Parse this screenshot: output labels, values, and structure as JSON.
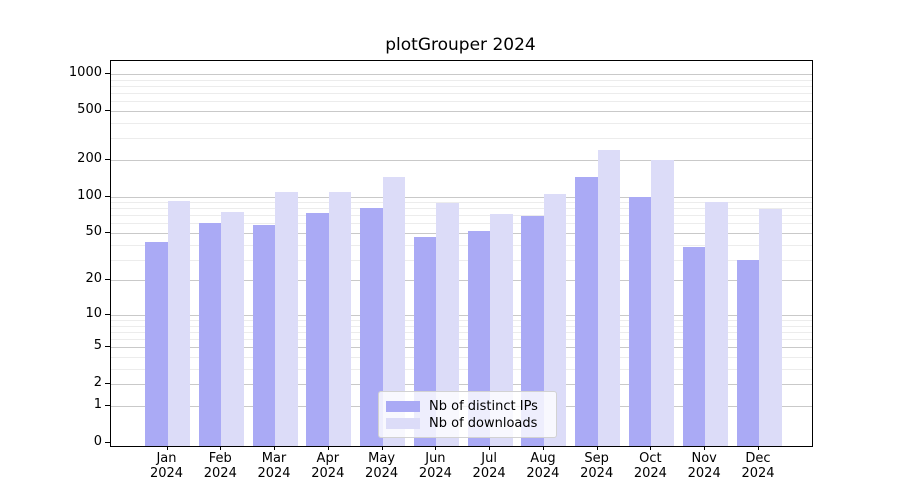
{
  "title": "plotGrouper 2024",
  "chart_data": {
    "type": "bar",
    "title": "plotGrouper 2024",
    "categories": [
      "Jan 2024",
      "Feb 2024",
      "Mar 2024",
      "Apr 2024",
      "May 2024",
      "Jun 2024",
      "Jul 2024",
      "Aug 2024",
      "Sep 2024",
      "Oct 2024",
      "Nov 2024",
      "Dec 2024"
    ],
    "months": [
      "Jan",
      "Feb",
      "Mar",
      "Apr",
      "May",
      "Jun",
      "Jul",
      "Aug",
      "Sep",
      "Oct",
      "Nov",
      "Dec"
    ],
    "year_label": "2024",
    "series": [
      {
        "name": "Nb of distinct IPs",
        "color": "#aaaaf5",
        "values": [
          42,
          61,
          58,
          73,
          80,
          46,
          52,
          69,
          145,
          100,
          38,
          30
        ]
      },
      {
        "name": "Nb of downloads",
        "color": "#dcdcf8",
        "values": [
          92,
          74,
          108,
          108,
          145,
          88,
          72,
          105,
          240,
          200,
          90,
          79
        ]
      }
    ],
    "yscale": "log1p",
    "ylim": [
      0,
      1270
    ],
    "y_ticks": [
      0,
      1,
      2,
      5,
      10,
      20,
      50,
      100,
      200,
      500,
      1000
    ],
    "y_tick_labels": [
      "0",
      "1",
      "2",
      "5",
      "10",
      "20",
      "50",
      "100",
      "200",
      "500",
      "1000"
    ],
    "y_minor_ticks": [
      3,
      4,
      6,
      7,
      8,
      9,
      30,
      40,
      60,
      70,
      80,
      90,
      300,
      400,
      600,
      700,
      800,
      900
    ],
    "grid": true,
    "legend_position": "lower center",
    "xlabel": "",
    "ylabel": ""
  },
  "colors": {
    "background": "#ffffff",
    "grid_major": "#c9c9c9",
    "grid_minor": "#ececec",
    "axis": "#000000",
    "bar_distinct_ips": "#aaaaf5",
    "bar_downloads": "#dcdcf8"
  }
}
